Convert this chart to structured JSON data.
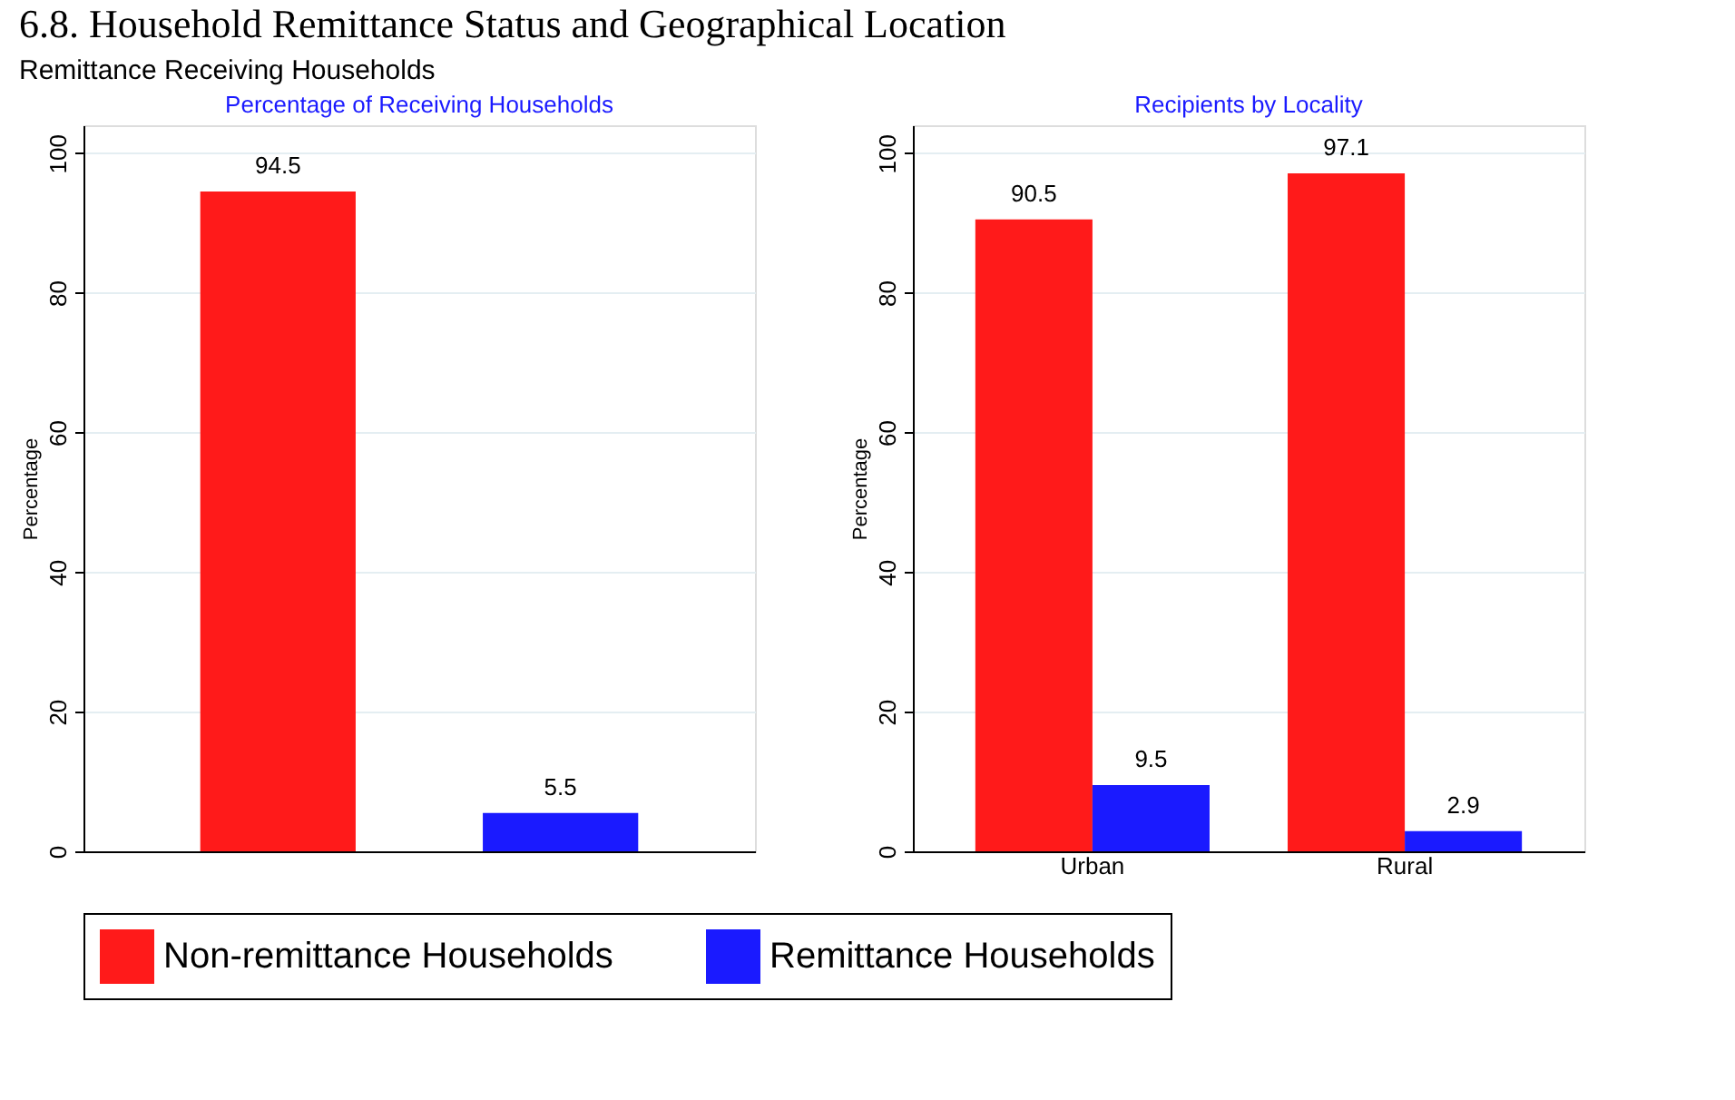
{
  "chart_data": [
    {
      "type": "bar",
      "title": "Percentage of Receiving Households",
      "ylabel": "Percentage",
      "annotations": [
        "6.8. Household Remittance Status and Geographical Location",
        "Remittance Receiving Households"
      ],
      "categories": [
        null
      ],
      "series": [
        {
          "name": "Non-remittance Households",
          "color": "#ff1a1a",
          "values": [
            94.5
          ]
        },
        {
          "name": "Remittance Households",
          "color": "#1a1aff",
          "values": [
            5.5
          ]
        }
      ],
      "ylim": [
        0,
        104
      ],
      "yticks": [
        0,
        20,
        40,
        60,
        80,
        100
      ],
      "grid": "y",
      "data_labels": true,
      "legend": "bottom",
      "tick_labels": "y"
    },
    {
      "type": "bar",
      "title": "Recipients by Locality",
      "ylabel": "Percentage",
      "categories": [
        "Urban",
        "Rural"
      ],
      "series": [
        {
          "name": "Non-remittance Households",
          "color": "#ff1a1a",
          "values": [
            90.5,
            97.1
          ]
        },
        {
          "name": "Remittance Households",
          "color": "#1a1aff",
          "values": [
            9.5,
            2.9
          ]
        }
      ],
      "ylim": [
        0,
        104
      ],
      "yticks": [
        0,
        20,
        40,
        60,
        80,
        100
      ],
      "grid": "y",
      "data_labels": true,
      "legend": "bottom"
    }
  ]
}
